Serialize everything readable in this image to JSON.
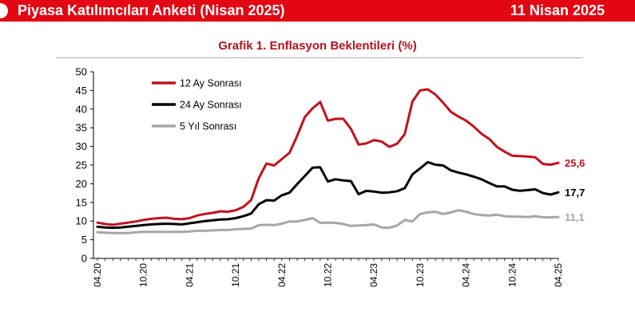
{
  "header": {
    "title": "Piyasa Katılımcıları Anketi (Nisan 2025)",
    "date": "11 Nisan 2025",
    "bar_color": "#e30613"
  },
  "chart_data": {
    "type": "line",
    "title": "Grafik 1. Enflasyon Beklentileri (%)",
    "xlabel": "",
    "ylabel": "",
    "ylim": [
      0,
      50
    ],
    "yticks": [
      0,
      5,
      10,
      15,
      20,
      25,
      30,
      35,
      40,
      45,
      50
    ],
    "x_tick_labels": [
      "04.20",
      "10.20",
      "04.21",
      "10.21",
      "04.22",
      "10.22",
      "04.23",
      "10.23",
      "04.24",
      "10.24",
      "04.25"
    ],
    "x": [
      "04.20",
      "05.20",
      "06.20",
      "07.20",
      "08.20",
      "09.20",
      "10.20",
      "11.20",
      "12.20",
      "01.21",
      "02.21",
      "03.21",
      "04.21",
      "05.21",
      "06.21",
      "07.21",
      "08.21",
      "09.21",
      "10.21",
      "11.21",
      "12.21",
      "01.22",
      "02.22",
      "03.22",
      "04.22",
      "05.22",
      "06.22",
      "07.22",
      "08.22",
      "09.22",
      "10.22",
      "11.22",
      "12.22",
      "01.23",
      "02.23",
      "03.23",
      "04.23",
      "05.23",
      "06.23",
      "07.23",
      "08.23",
      "09.23",
      "10.23",
      "11.23",
      "12.23",
      "01.24",
      "02.24",
      "03.24",
      "04.24",
      "05.24",
      "06.24",
      "07.24",
      "08.24",
      "09.24",
      "10.24",
      "11.24",
      "12.24",
      "01.25",
      "02.25",
      "03.25",
      "04.25"
    ],
    "grid": false,
    "legend_position": "top-left",
    "series": [
      {
        "name": "12 Ay Sonrası",
        "color": "#c0121e",
        "end_label": "25,6",
        "values": [
          9.6,
          9.2,
          9.0,
          9.3,
          9.6,
          9.9,
          10.3,
          10.6,
          10.8,
          10.9,
          10.6,
          10.5,
          10.8,
          11.5,
          11.9,
          12.2,
          12.6,
          12.5,
          12.9,
          13.8,
          15.6,
          21.5,
          25.4,
          24.9,
          26.6,
          28.3,
          32.8,
          37.9,
          40.2,
          41.9,
          36.9,
          37.4,
          37.4,
          34.7,
          30.5,
          30.8,
          31.7,
          31.3,
          29.9,
          30.7,
          33.3,
          42.0,
          45.0,
          45.3,
          43.9,
          41.7,
          39.3,
          38.0,
          36.9,
          35.3,
          33.4,
          32.0,
          29.9,
          28.6,
          27.5,
          27.4,
          27.3,
          27.1,
          25.3,
          25.1,
          25.6
        ]
      },
      {
        "name": "24 Ay Sonrası",
        "color": "#000000",
        "end_label": "17,7",
        "values": [
          8.5,
          8.3,
          8.2,
          8.3,
          8.5,
          8.7,
          8.9,
          9.1,
          9.2,
          9.3,
          9.2,
          9.1,
          9.4,
          9.7,
          10.0,
          10.2,
          10.4,
          10.5,
          10.8,
          11.3,
          12.0,
          14.5,
          15.6,
          15.5,
          16.9,
          17.6,
          19.9,
          22.1,
          24.3,
          24.4,
          20.6,
          21.2,
          20.9,
          20.7,
          17.2,
          18.1,
          17.9,
          17.6,
          17.7,
          18.0,
          18.8,
          22.5,
          24.1,
          25.8,
          25.1,
          24.9,
          23.6,
          23.0,
          22.5,
          21.9,
          21.2,
          20.2,
          19.3,
          19.3,
          18.4,
          18.1,
          18.3,
          18.5,
          17.5,
          17.1,
          17.7
        ]
      },
      {
        "name": "5 Yıl Sonrası",
        "color": "#a6a6a6",
        "end_label": "11,1",
        "values": [
          7.0,
          6.9,
          6.8,
          6.8,
          6.8,
          7.0,
          7.1,
          7.1,
          7.1,
          7.1,
          7.1,
          7.1,
          7.2,
          7.4,
          7.4,
          7.5,
          7.6,
          7.6,
          7.8,
          7.9,
          8.0,
          8.9,
          9.0,
          8.9,
          9.3,
          9.9,
          9.9,
          10.3,
          10.8,
          9.5,
          9.6,
          9.5,
          9.2,
          8.7,
          8.8,
          8.9,
          9.1,
          8.3,
          8.2,
          8.8,
          10.3,
          9.9,
          11.9,
          12.3,
          12.5,
          11.9,
          12.3,
          12.9,
          12.5,
          11.9,
          11.6,
          11.5,
          11.7,
          11.3,
          11.2,
          11.2,
          11.1,
          11.3,
          11.0,
          11.0,
          11.1
        ]
      }
    ]
  }
}
